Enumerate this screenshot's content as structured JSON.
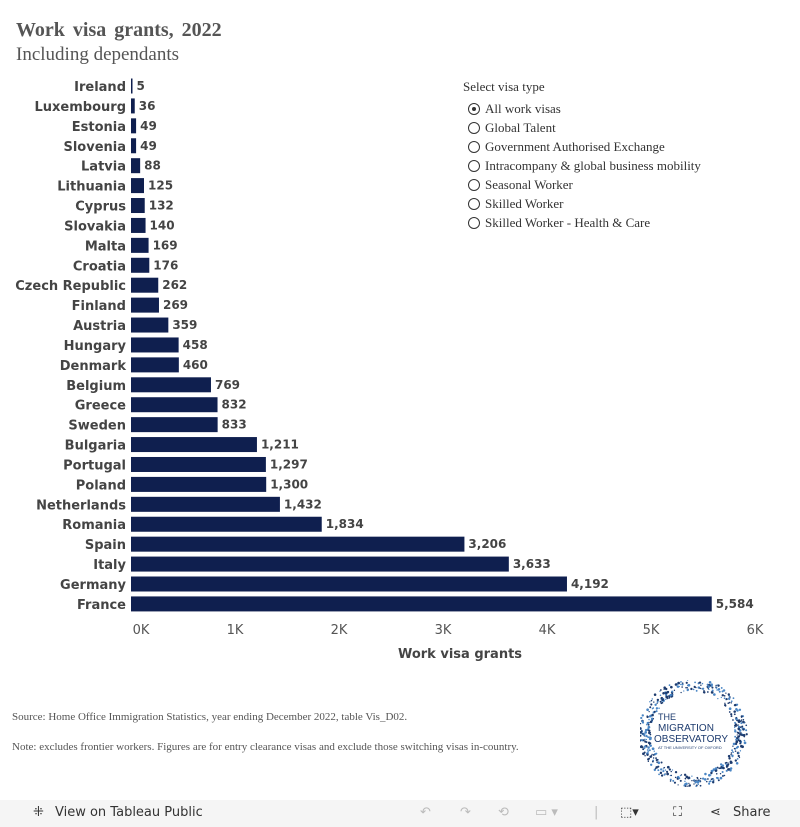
{
  "title": "Work visa grants, 2022",
  "subtitle": "Including dependants",
  "legend": {
    "title": "Select visa type",
    "options": [
      "All work visas",
      "Global Talent",
      "Government Authorised Exchange",
      "Intracompany & global business mobility",
      "Seasonal Worker",
      "Skilled Worker",
      "Skilled Worker - Health & Care"
    ],
    "selected": 0
  },
  "chart_data": {
    "type": "bar",
    "orientation": "horizontal",
    "categories": [
      "Ireland",
      "Luxembourg",
      "Estonia",
      "Slovenia",
      "Latvia",
      "Lithuania",
      "Cyprus",
      "Slovakia",
      "Malta",
      "Croatia",
      "Czech Republic",
      "Finland",
      "Austria",
      "Hungary",
      "Denmark",
      "Belgium",
      "Greece",
      "Sweden",
      "Bulgaria",
      "Portugal",
      "Poland",
      "Netherlands",
      "Romania",
      "Spain",
      "Italy",
      "Germany",
      "France"
    ],
    "values": [
      5,
      36,
      49,
      49,
      88,
      125,
      132,
      140,
      169,
      176,
      262,
      269,
      359,
      458,
      460,
      769,
      832,
      833,
      1211,
      1297,
      1300,
      1432,
      1834,
      3206,
      3633,
      4192,
      5584
    ],
    "value_labels": [
      "5",
      "36",
      "49",
      "49",
      "88",
      "125",
      "132",
      "140",
      "169",
      "176",
      "262",
      "269",
      "359",
      "458",
      "460",
      "769",
      "832",
      "833",
      "1,211",
      "1,297",
      "1,300",
      "1,432",
      "1,834",
      "3,206",
      "3,633",
      "4,192",
      "5,584"
    ],
    "xlabel": "Work visa grants",
    "xlim": [
      0,
      6000
    ],
    "xticks": [
      0,
      1000,
      2000,
      3000,
      4000,
      5000,
      6000
    ],
    "xtick_labels": [
      "0K",
      "1K",
      "2K",
      "3K",
      "4K",
      "5K",
      "6K"
    ],
    "grid": false,
    "bar_color": "#0f1f4f"
  },
  "source": "Source: Home Office Immigration Statistics, year ending December 2022, table Vis_D02.",
  "note": "Note: excludes frontier workers. Figures are for entry clearance visas and exclude those switching visas in-country.",
  "logo": {
    "lines": [
      "THE",
      "MIGRATION",
      "OBSERVATORY",
      "AT THE UNIVERSITY OF OXFORD"
    ]
  },
  "toolbar": {
    "view_label": "View on Tableau Public",
    "share_label": "Share"
  }
}
